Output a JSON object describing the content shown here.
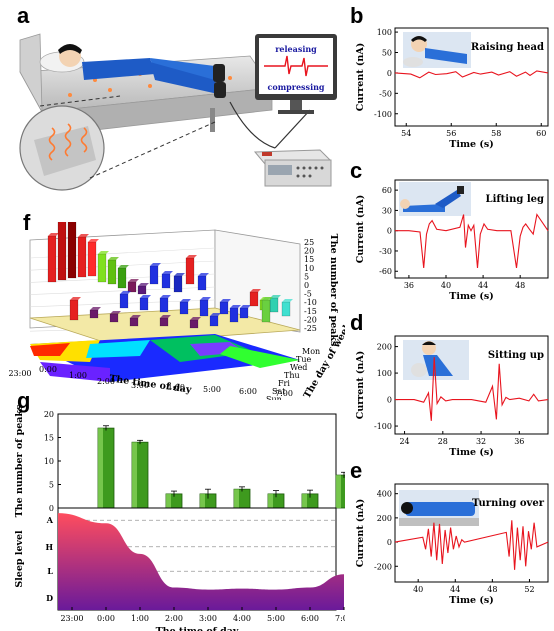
{
  "figure": {
    "labels": {
      "a": "a",
      "b": "b",
      "c": "c",
      "d": "d",
      "e": "e",
      "f": "f",
      "g": "g"
    },
    "panel_a": {
      "monitor_top": "releasing",
      "monitor_bottom": "compressing"
    },
    "colors": {
      "signal": "#e8141e",
      "bar_green": "#3e9a1e",
      "sleep_top": "#ff4d5e",
      "sleep_bottom": "#6a1a9a",
      "bed_gray": "#cfcfcf"
    },
    "panel_f": {
      "z_label": "The number of peaks",
      "z_ticks": [
        "25",
        "20",
        "15",
        "10",
        "5",
        "0",
        "-5",
        "-10",
        "-15",
        "-20",
        "-25"
      ],
      "x_label": "The time of day",
      "x_ticks": [
        "23:00",
        "0:00",
        "1:00",
        "2:00",
        "3:00",
        "4:00",
        "5:00",
        "6:00",
        "7:00"
      ],
      "y_label": "The day of week",
      "y_ticks": [
        "Mon",
        "Tue",
        "Wed",
        "Thu",
        "Fri",
        "Sat",
        "Sun"
      ]
    }
  },
  "chart_data": [
    {
      "type": "line",
      "id": "b",
      "title": "Raising head",
      "xlabel": "Time (s)",
      "ylabel": "Current (nA)",
      "xlim": [
        53.5,
        60.3
      ],
      "ylim": [
        -130,
        110
      ],
      "xticks": [
        "54",
        "56",
        "58",
        "60"
      ],
      "yticks": [
        "100",
        "50",
        "0",
        "-50",
        "-100"
      ],
      "x": [
        53.5,
        54.2,
        54.6,
        55.0,
        55.3,
        55.8,
        56.2,
        56.5,
        57.0,
        57.3,
        57.8,
        58.1,
        58.6,
        58.9,
        59.3,
        59.5,
        59.8,
        60.3
      ],
      "y": [
        0,
        -3,
        -12,
        2,
        -4,
        -2,
        3,
        -10,
        1,
        -3,
        2,
        -5,
        3,
        -8,
        2,
        -6,
        5,
        0
      ]
    },
    {
      "type": "line",
      "id": "c",
      "title": "Lifting leg",
      "xlabel": "Time (s)",
      "ylabel": "Current (nA)",
      "xlim": [
        34.5,
        51
      ],
      "ylim": [
        -70,
        75
      ],
      "xticks": [
        "36",
        "40",
        "44",
        "48"
      ],
      "yticks": [
        "60",
        "30",
        "0",
        "-30",
        "-60"
      ],
      "x": [
        34.5,
        36,
        37.2,
        37.6,
        37.9,
        38.2,
        38.5,
        39,
        40,
        41.5,
        41.9,
        42.1,
        42.4,
        42.7,
        43,
        43.4,
        43.7,
        44.1,
        44.5,
        45.5,
        47,
        47.6,
        48,
        48.3,
        48.6,
        49,
        49.4,
        49.8,
        51
      ],
      "y": [
        0,
        0,
        -2,
        -55,
        -5,
        10,
        15,
        2,
        0,
        5,
        24,
        -25,
        8,
        0,
        8,
        -55,
        -5,
        10,
        2,
        0,
        0,
        -55,
        -8,
        5,
        10,
        2,
        -5,
        24,
        0
      ]
    },
    {
      "type": "line",
      "id": "d",
      "title": "Sitting up",
      "xlabel": "Time (s)",
      "ylabel": "Current (nA)",
      "xlim": [
        23,
        39
      ],
      "ylim": [
        -130,
        240
      ],
      "xticks": [
        "24",
        "28",
        "32",
        "36"
      ],
      "yticks": [
        "200",
        "100",
        "0",
        "-100"
      ],
      "x": [
        23,
        25,
        26,
        26.5,
        26.8,
        27.1,
        27.4,
        27.8,
        28.3,
        29,
        31,
        32.5,
        33.2,
        33.6,
        33.9,
        34.2,
        34.6,
        35,
        36,
        37,
        37.5,
        38,
        39
      ],
      "y": [
        0,
        0,
        -10,
        25,
        -80,
        160,
        -15,
        10,
        -5,
        0,
        0,
        -10,
        50,
        -75,
        135,
        -20,
        8,
        0,
        5,
        -5,
        20,
        -5,
        0
      ]
    },
    {
      "type": "line",
      "id": "e",
      "title": "Turning over",
      "xlabel": "Time (s)",
      "ylabel": "Current (nA)",
      "xlim": [
        37.5,
        54
      ],
      "ylim": [
        -330,
        480
      ],
      "xticks": [
        "40",
        "44",
        "48",
        "52"
      ],
      "yticks": [
        "400",
        "200",
        "0",
        "-200"
      ],
      "x": [
        37.5,
        40.5,
        40.8,
        41.1,
        41.4,
        41.7,
        42,
        42.3,
        42.6,
        42.9,
        43.2,
        43.5,
        43.8,
        44.1,
        44.4,
        44.7,
        45,
        49.5,
        49.8,
        50.1,
        50.4,
        50.7,
        51,
        51.3,
        51.6,
        51.9,
        52.2,
        52.5,
        52.8,
        54
      ],
      "y": [
        0,
        40,
        -60,
        110,
        -120,
        160,
        -150,
        150,
        -180,
        100,
        -90,
        120,
        -60,
        50,
        -40,
        20,
        0,
        80,
        -120,
        180,
        -230,
        120,
        -150,
        130,
        -200,
        90,
        -60,
        160,
        -40,
        0
      ]
    },
    {
      "type": "bar",
      "id": "g-top",
      "ylabel": "The number of peaks",
      "ylim": [
        0,
        20
      ],
      "yticks": [
        "0",
        "5",
        "10",
        "15",
        "20"
      ],
      "categories": [
        "0:00",
        "1:00",
        "2:00",
        "3:00",
        "4:00",
        "5:00",
        "6:00",
        "7:00"
      ],
      "values": [
        17,
        14,
        3,
        3,
        4,
        3,
        3,
        7
      ],
      "errors": [
        0.5,
        0.4,
        0.6,
        1.0,
        0.5,
        0.7,
        0.8,
        0.6
      ]
    },
    {
      "type": "area",
      "id": "g-bottom",
      "xlabel": "The time of day",
      "ylabel": "Sleep level",
      "levels": [
        "A",
        "H",
        "L",
        "D"
      ],
      "xticks": [
        "23:00",
        "0:00",
        "1:00",
        "2:00",
        "3:00",
        "4:00",
        "5:00",
        "6:00",
        "7:00"
      ],
      "x": [
        0,
        1,
        2,
        3,
        4,
        5,
        6,
        7,
        8
      ],
      "y": [
        0.95,
        0.85,
        0.55,
        0.22,
        0.2,
        0.21,
        0.2,
        0.22,
        0.35
      ]
    }
  ]
}
